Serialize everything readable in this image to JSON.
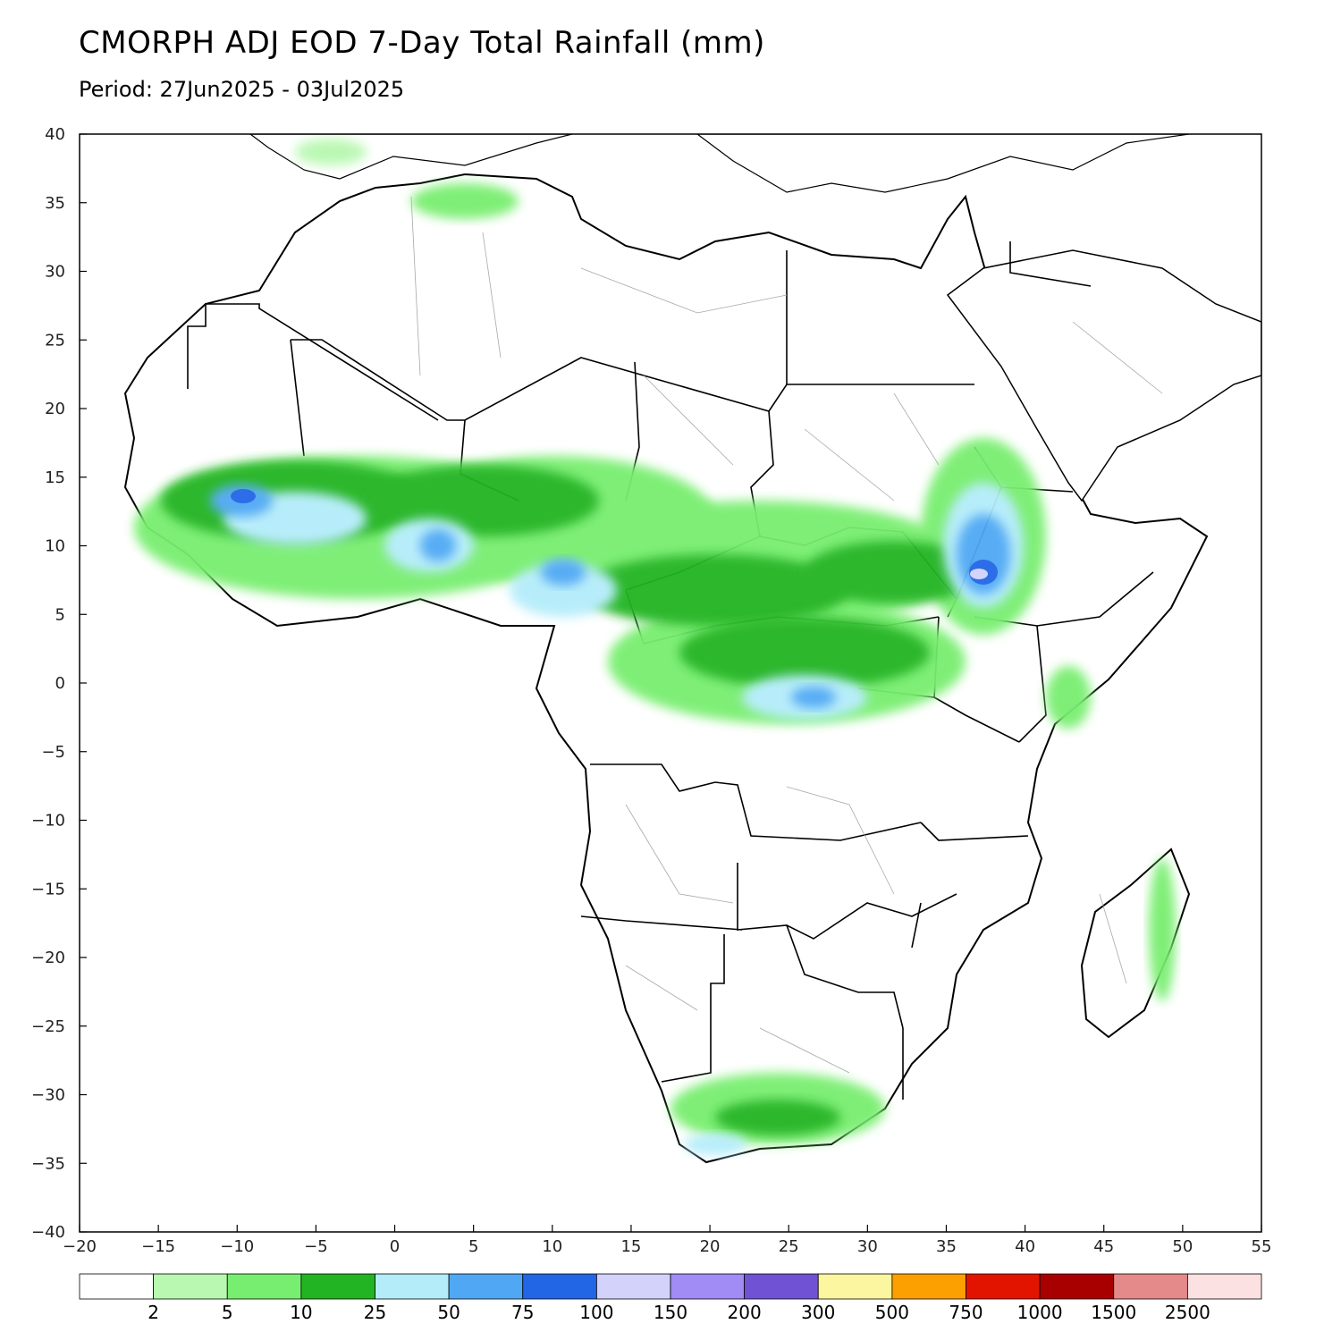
{
  "title": "CMORPH ADJ EOD 7-Day Total Rainfall (mm)",
  "subtitle": "Period: 27Jun2025 - 03Jul2025",
  "map": {
    "lon_range": [
      -20,
      55
    ],
    "lat_range": [
      -40,
      40
    ],
    "lon_ticks": [
      -20,
      -15,
      -10,
      -5,
      0,
      5,
      10,
      15,
      20,
      25,
      30,
      35,
      40,
      45,
      50,
      55
    ],
    "lat_ticks": [
      40,
      35,
      30,
      25,
      20,
      15,
      10,
      5,
      0,
      -5,
      -10,
      -15,
      -20,
      -25,
      -30,
      -35,
      -40
    ],
    "lon_tick_labels": [
      "−20",
      "−15",
      "−10",
      "−5",
      "0",
      "5",
      "10",
      "15",
      "20",
      "25",
      "30",
      "35",
      "40",
      "45",
      "50",
      "55"
    ],
    "lat_tick_labels": [
      "40",
      "35",
      "30",
      "25",
      "20",
      "15",
      "10",
      "5",
      "0",
      "−5",
      "−10",
      "−15",
      "−20",
      "−25",
      "−30",
      "−35",
      "−40"
    ]
  },
  "colorbar": {
    "colors": [
      "#ffffff",
      "#b8f8b0",
      "#78ee70",
      "#22b422",
      "#b4ecfa",
      "#50a8f4",
      "#2266e6",
      "#d2d2fa",
      "#a08cf4",
      "#7052d4",
      "#fcf6a0",
      "#fba000",
      "#e21400",
      "#a80000",
      "#e48a8a",
      "#fbe1e1"
    ],
    "labels": [
      "2",
      "5",
      "10",
      "25",
      "50",
      "75",
      "100",
      "150",
      "200",
      "300",
      "500",
      "750",
      "1000",
      "1500",
      "2500"
    ]
  }
}
